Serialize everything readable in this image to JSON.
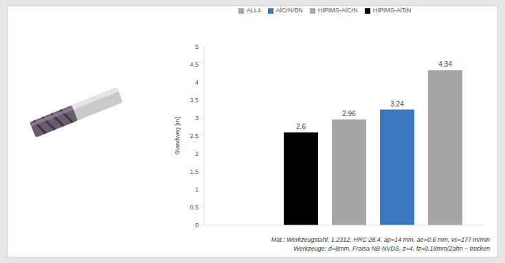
{
  "chart_data": {
    "type": "bar",
    "categories": [
      null
    ],
    "series": [
      {
        "name": "HIPIMS-AlTiN",
        "color": "#000000",
        "values": [
          2.6
        ]
      },
      {
        "name": "HIPIMS-AlCrN",
        "color": "#a6a6a6",
        "values": [
          2.96
        ]
      },
      {
        "name": "AlCrN/BN",
        "color": "#3b78bf",
        "values": [
          3.24
        ]
      },
      {
        "name": "ALL4",
        "color": "#a6a6a6",
        "values": [
          4.34
        ]
      }
    ],
    "y_label": "Standweg [m]",
    "ylim": [
      0,
      5
    ],
    "yticks": [
      0,
      0.5,
      1,
      1.5,
      2,
      2.5,
      3,
      3.5,
      4,
      4.5,
      5
    ],
    "grid": false,
    "legend": "top",
    "data_labels": true,
    "tick_labels": "y",
    "annotations": [
      "Mat.: Werkzeugstahl, 1.2312, HRC 28.4, ap=14 mm, ae=0.6 mm, vc=177 m/min",
      "Werkzeuge: d=8mm, Fraisa NB-NVDS, z=4, fz=0.18mm/Zahn – trocken"
    ]
  }
}
